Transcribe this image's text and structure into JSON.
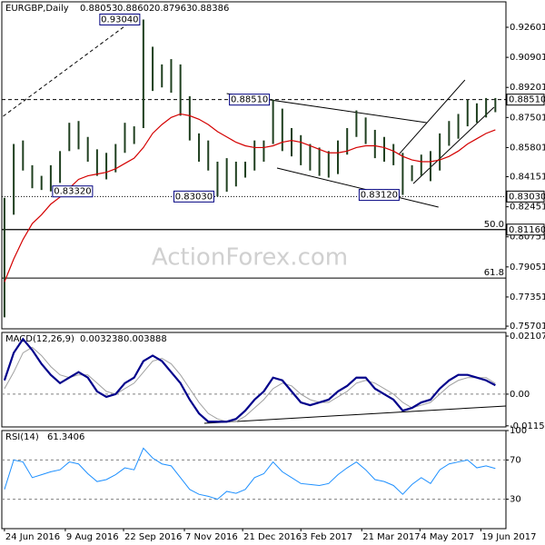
{
  "chart_data": {
    "type": "ohlc",
    "header": {
      "symbol": "EURGBP,Daily",
      "ohlc": [
        0.88053,
        0.88602,
        0.87963,
        0.88386
      ]
    },
    "watermark": "ActionForex.com",
    "x": [
      "2016-06-24",
      "2016-07-01",
      "2016-07-08",
      "2016-07-15",
      "2016-07-22",
      "2016-07-29",
      "2016-08-05",
      "2016-08-12",
      "2016-08-19",
      "2016-08-26",
      "2016-09-02",
      "2016-09-09",
      "2016-09-16",
      "2016-09-23",
      "2016-09-30",
      "2016-10-07",
      "2016-10-14",
      "2016-10-21",
      "2016-10-28",
      "2016-11-04",
      "2016-11-11",
      "2016-11-18",
      "2016-11-25",
      "2016-12-02",
      "2016-12-09",
      "2016-12-16",
      "2016-12-23",
      "2016-12-30",
      "2017-01-06",
      "2017-01-13",
      "2017-01-20",
      "2017-01-27",
      "2017-02-03",
      "2017-02-10",
      "2017-02-17",
      "2017-02-24",
      "2017-03-03",
      "2017-03-10",
      "2017-03-17",
      "2017-03-24",
      "2017-03-31",
      "2017-04-07",
      "2017-04-14",
      "2017-04-21",
      "2017-04-28",
      "2017-05-05",
      "2017-05-12",
      "2017-05-19",
      "2017-05-26",
      "2017-06-02",
      "2017-06-09",
      "2017-06-16",
      "2017-06-23",
      "2017-06-30"
    ],
    "xlim": [
      "2016-06-22",
      "2017-07-08"
    ],
    "xticks": [
      {
        "value": "2016-06-24",
        "label": "24 Jun 2016"
      },
      {
        "value": "2016-08-09",
        "label": "9 Aug 2016"
      },
      {
        "value": "2016-09-22",
        "label": "22 Sep 2016"
      },
      {
        "value": "2016-11-07",
        "label": "7 Nov 2016"
      },
      {
        "value": "2016-12-21",
        "label": "21 Dec 2016"
      },
      {
        "value": "2017-02-03",
        "label": "3 Feb 2017"
      },
      {
        "value": "2017-03-21",
        "label": "21 Mar 2017"
      },
      {
        "value": "2017-05-04",
        "label": "4 May 2017"
      },
      {
        "value": "2017-06-19",
        "label": "19 Jun 2017"
      }
    ],
    "price": {
      "color": "#1f3f1f",
      "high": [
        0.8296,
        0.86,
        0.862,
        0.848,
        0.842,
        0.848,
        0.856,
        0.872,
        0.873,
        0.864,
        0.857,
        0.855,
        0.86,
        0.872,
        0.87,
        0.9304,
        0.915,
        0.905,
        0.908,
        0.905,
        0.887,
        0.866,
        0.862,
        0.85,
        0.852,
        0.85,
        0.85,
        0.862,
        0.862,
        0.8851,
        0.88,
        0.869,
        0.865,
        0.86,
        0.858,
        0.856,
        0.862,
        0.869,
        0.879,
        0.875,
        0.868,
        0.864,
        0.86,
        0.855,
        0.848,
        0.854,
        0.856,
        0.866,
        0.873,
        0.877,
        0.885,
        0.883,
        0.886,
        0.886
      ],
      "low": [
        0.762,
        0.82,
        0.845,
        0.835,
        0.834,
        0.8332,
        0.838,
        0.856,
        0.857,
        0.85,
        0.842,
        0.84,
        0.844,
        0.855,
        0.86,
        0.869,
        0.89,
        0.892,
        0.889,
        0.876,
        0.862,
        0.85,
        0.845,
        0.8303,
        0.833,
        0.836,
        0.841,
        0.845,
        0.85,
        0.86,
        0.856,
        0.853,
        0.848,
        0.845,
        0.842,
        0.841,
        0.843,
        0.854,
        0.864,
        0.86,
        0.852,
        0.85,
        0.848,
        0.8312,
        0.839,
        0.842,
        0.839,
        0.845,
        0.859,
        0.863,
        0.87,
        0.872,
        0.875,
        0.878
      ],
      "ma": {
        "color": "#d40000",
        "values": [
          0.782,
          0.795,
          0.806,
          0.815,
          0.82,
          0.826,
          0.83,
          0.835,
          0.84,
          0.842,
          0.843,
          0.844,
          0.846,
          0.849,
          0.852,
          0.858,
          0.866,
          0.871,
          0.875,
          0.877,
          0.876,
          0.874,
          0.871,
          0.867,
          0.864,
          0.861,
          0.859,
          0.858,
          0.858,
          0.859,
          0.861,
          0.862,
          0.861,
          0.859,
          0.857,
          0.855,
          0.855,
          0.856,
          0.858,
          0.859,
          0.859,
          0.858,
          0.856,
          0.853,
          0.851,
          0.85,
          0.85,
          0.851,
          0.853,
          0.856,
          0.86,
          0.863,
          0.866,
          0.868
        ]
      },
      "ylim": [
        0.7555,
        0.9404
      ],
      "yticks": [
        0.92601,
        0.90901,
        0.89201,
        0.87501,
        0.85801,
        0.84151,
        0.82451,
        0.80751,
        0.79051,
        0.77351,
        0.75701
      ],
      "levels": [
        {
          "value": 0.8851,
          "label": "0.88510",
          "style": "dashed"
        },
        {
          "value": 0.8303,
          "label": "0.83030",
          "style": "dotted"
        },
        {
          "value": 0.8116,
          "label": "0.81160",
          "style": "solid"
        }
      ],
      "fib": [
        {
          "value": 0.8116,
          "label": "50.0"
        },
        {
          "value": 0.7842,
          "label": "61.8"
        }
      ],
      "annotations": [
        {
          "x": "2016-10-07",
          "value": 0.9304,
          "label": "0.93040"
        },
        {
          "x": "2017-01-13",
          "value": 0.8851,
          "label": "0.88510"
        },
        {
          "x": "2016-07-29",
          "value": 0.8332,
          "label": "0.83320"
        },
        {
          "x": "2016-12-02",
          "value": 0.8303,
          "label": "0.83030"
        },
        {
          "x": "2017-04-21",
          "value": 0.8312,
          "label": "0.83120"
        }
      ],
      "trendlines": [
        {
          "x": [
            "2016-06-23",
            "2016-10-01"
          ],
          "y": [
            0.8757,
            0.9311
          ],
          "style": "dashed"
        },
        {
          "x": [
            "2016-12-09",
            "2017-05-09"
          ],
          "y": [
            0.8885,
            0.8721
          ],
          "style": "solid"
        },
        {
          "x": [
            "2017-01-16",
            "2017-05-18"
          ],
          "y": [
            0.8464,
            0.8243
          ],
          "style": "solid"
        },
        {
          "x": [
            "2017-04-18",
            "2017-06-07"
          ],
          "y": [
            0.8541,
            0.8962
          ],
          "style": "solid"
        },
        {
          "x": [
            "2017-04-29",
            "2017-06-29"
          ],
          "y": [
            0.8376,
            0.8808
          ],
          "style": "solid"
        }
      ]
    },
    "macd": {
      "title": "MACD(12,26,9)",
      "current": [
        0.003238,
        0.003888
      ],
      "ylim": [
        -0.0119,
        0.0224
      ],
      "yticks": [
        0.021074,
        {
          "value": 0,
          "label": "0.00"
        },
        -0.011507
      ],
      "levels": [
        0
      ],
      "series": [
        {
          "color": "#00008b",
          "values": [
            0.005,
            0.015,
            0.02,
            0.016,
            0.011,
            0.007,
            0.004,
            0.006,
            0.008,
            0.006,
            0.001,
            -0.001,
            0.0,
            0.004,
            0.006,
            0.012,
            0.014,
            0.012,
            0.008,
            0.004,
            -0.002,
            -0.007,
            -0.01,
            -0.01,
            -0.01,
            -0.009,
            -0.006,
            -0.002,
            0.001,
            0.006,
            0.005,
            0.001,
            -0.003,
            -0.004,
            -0.003,
            -0.002,
            0.001,
            0.003,
            0.006,
            0.006,
            0.002,
            0.0,
            -0.002,
            -0.006,
            -0.005,
            -0.003,
            -0.002,
            0.002,
            0.005,
            0.007,
            0.007,
            0.006,
            0.005,
            0.003238
          ]
        },
        {
          "color": "#a0a0a0",
          "values": [
            0.002,
            0.008,
            0.015,
            0.017,
            0.014,
            0.01,
            0.007,
            0.006,
            0.007,
            0.007,
            0.004,
            0.001,
            0.0,
            0.002,
            0.004,
            0.008,
            0.012,
            0.013,
            0.011,
            0.007,
            0.002,
            -0.003,
            -0.007,
            -0.009,
            -0.01,
            -0.01,
            -0.008,
            -0.005,
            -0.002,
            0.002,
            0.004,
            0.003,
            0.0,
            -0.002,
            -0.003,
            -0.003,
            -0.001,
            0.001,
            0.004,
            0.005,
            0.004,
            0.002,
            0.0,
            -0.003,
            -0.005,
            -0.004,
            -0.003,
            0.0,
            0.003,
            0.005,
            0.006,
            0.006,
            0.006,
            0.003888
          ]
        }
      ],
      "trendline": {
        "x": [
          "2016-11-22",
          "2017-07-08"
        ],
        "y": [
          -0.0106,
          -0.0043
        ]
      }
    },
    "rsi": {
      "title": "RSI(14)",
      "current": 61.3406,
      "ylim": [
        0,
        100
      ],
      "yticks": [
        100,
        70,
        30
      ],
      "levels": [
        70,
        30
      ],
      "color": "#1e90ff",
      "values": [
        40,
        70,
        68,
        52,
        55,
        58,
        60,
        68,
        66,
        56,
        48,
        50,
        55,
        62,
        60,
        82,
        72,
        66,
        64,
        52,
        40,
        35,
        33,
        30,
        38,
        36,
        40,
        52,
        56,
        68,
        58,
        52,
        46,
        45,
        44,
        46,
        55,
        62,
        68,
        60,
        50,
        48,
        44,
        35,
        45,
        52,
        46,
        60,
        66,
        68,
        70,
        62,
        64,
        61.3406
      ]
    }
  }
}
